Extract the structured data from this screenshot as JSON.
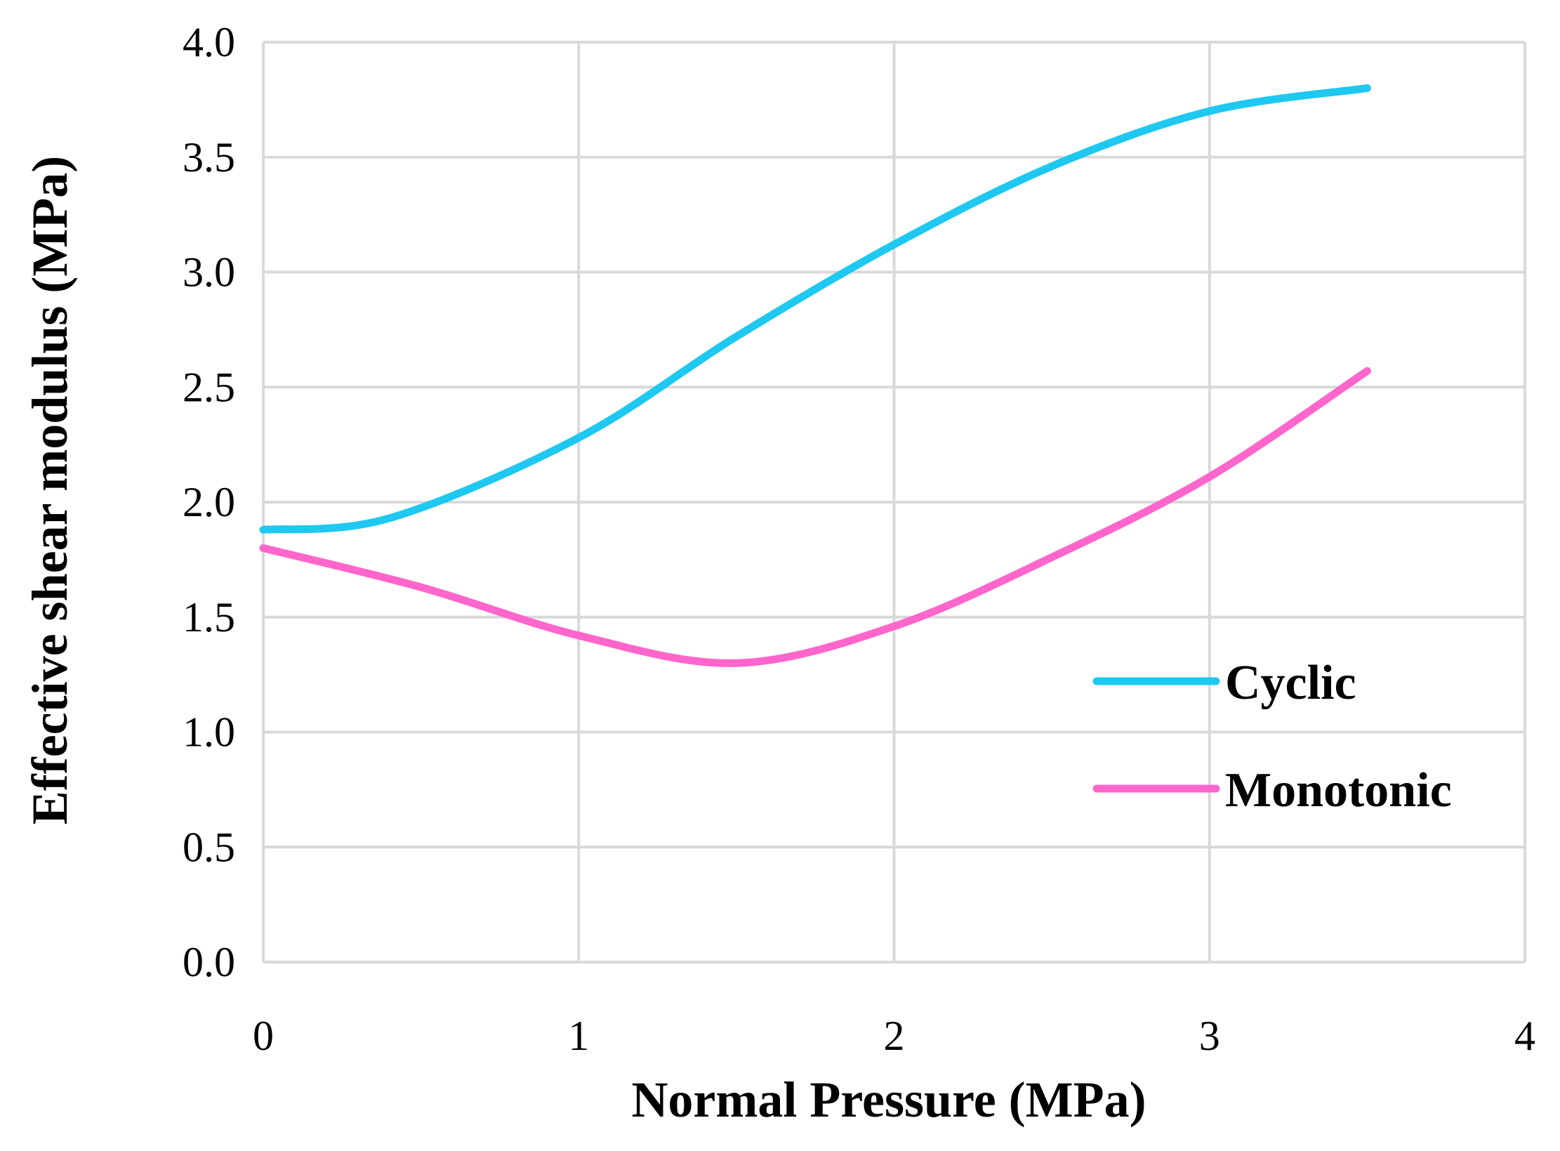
{
  "chart_data": {
    "type": "line",
    "title": "",
    "xlabel": "Normal Pressure (MPa)",
    "ylabel": "Effective shear modulus (MPa)",
    "xlim": [
      0,
      4
    ],
    "ylim": [
      0,
      4
    ],
    "x_ticks": [
      "0",
      "1",
      "2",
      "3",
      "4"
    ],
    "y_ticks": [
      "0.0",
      "0.5",
      "1.0",
      "1.5",
      "2.0",
      "2.5",
      "3.0",
      "3.5",
      "4.0"
    ],
    "grid": true,
    "legend_position": "right",
    "series": [
      {
        "name": "Cyclic",
        "color": "#1ec8f0",
        "smooth": true,
        "points": [
          [
            0,
            1.88
          ],
          [
            0.4,
            1.93
          ],
          [
            1.0,
            2.28
          ],
          [
            1.5,
            2.72
          ],
          [
            2.0,
            3.12
          ],
          [
            2.5,
            3.46
          ],
          [
            3.0,
            3.7
          ],
          [
            3.5,
            3.8
          ]
        ]
      },
      {
        "name": "Monotonic",
        "color": "#ff66cc",
        "smooth": true,
        "points": [
          [
            0,
            1.8
          ],
          [
            0.5,
            1.63
          ],
          [
            1.0,
            1.42
          ],
          [
            1.5,
            1.3
          ],
          [
            2.0,
            1.46
          ],
          [
            2.5,
            1.76
          ],
          [
            3.0,
            2.11
          ],
          [
            3.5,
            2.57
          ]
        ]
      }
    ]
  }
}
